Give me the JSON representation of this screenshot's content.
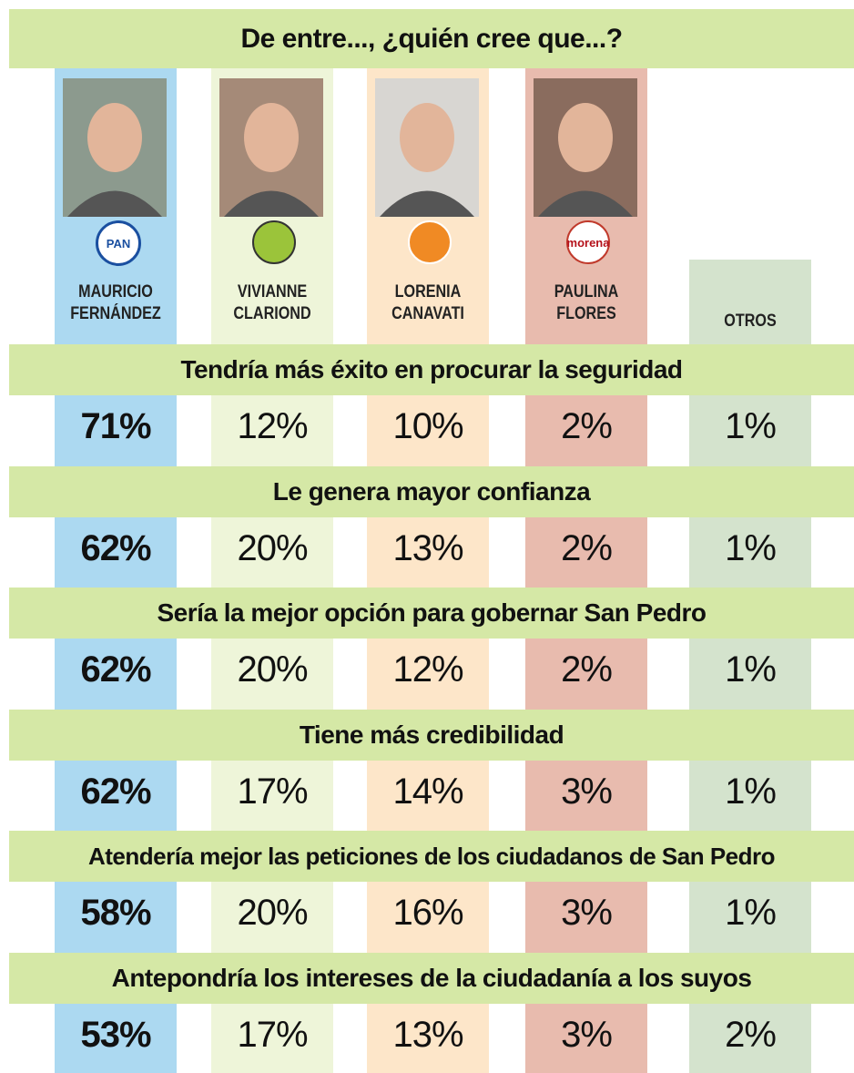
{
  "header": {
    "title": "De entre..., ¿quién cree que...?"
  },
  "candidates": [
    {
      "names": [
        "MAURICIO",
        "FERNÁNDEZ"
      ],
      "logo": "PAN"
    },
    {
      "names": [
        "VIVIANNE",
        "CLARIOND"
      ]
    },
    {
      "names": [
        "LORENIA",
        "CANAVATI"
      ]
    },
    {
      "names": [
        "PAULINA",
        "FLORES"
      ],
      "logo": "morena"
    }
  ],
  "others": "OTROS",
  "questions": [
    {
      "text": "Tendría más éxito en procurar la seguridad",
      "values": [
        "71%",
        "12%",
        "10%",
        "2%",
        "1%"
      ]
    },
    {
      "text": "Le genera mayor confianza",
      "values": [
        "62%",
        "20%",
        "13%",
        "2%",
        "1%"
      ]
    },
    {
      "text": "Sería la mejor opción para gobernar San Pedro",
      "values": [
        "62%",
        "20%",
        "12%",
        "2%",
        "1%"
      ]
    },
    {
      "text": "Tiene más credibilidad",
      "values": [
        "62%",
        "17%",
        "14%",
        "3%",
        "1%"
      ]
    },
    {
      "text": "Atendería mejor las peticiones de los ciudadanos de San Pedro",
      "values": [
        "58%",
        "20%",
        "16%",
        "3%",
        "1%"
      ]
    },
    {
      "text": "Antepondría los intereses de la ciudadanía a los suyos",
      "values": [
        "53%",
        "17%",
        "13%",
        "3%",
        "2%"
      ]
    }
  ]
}
